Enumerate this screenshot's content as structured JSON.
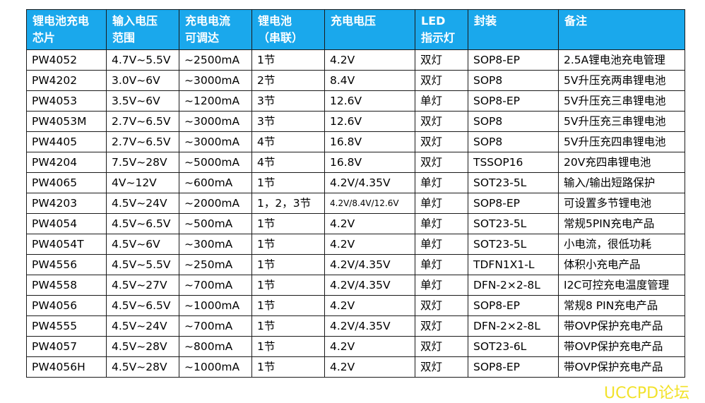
{
  "table": {
    "headers": [
      "锂电池充电\n芯片",
      "输入电压\n范围",
      "充电电流\n可调达",
      "锂电池\n（串联）",
      "充电电压",
      "LED\n指示灯",
      "封装",
      "备注"
    ],
    "rows": [
      [
        "PW4052",
        "4.7V~5.5V",
        "~2500mA",
        "1节",
        "4.2V",
        "双灯",
        "SOP8-EP",
        "2.5A锂电池充电管理"
      ],
      [
        "PW4202",
        "3.0V~6V",
        "~3000mA",
        "2节",
        "8.4V",
        "双灯",
        "SOP8",
        "5V升压充两串锂电池"
      ],
      [
        "PW4053",
        "3.5V~6V",
        "~1200mA",
        "3节",
        "12.6V",
        "单灯",
        "SOP8-EP",
        "5V升压充三串锂电池"
      ],
      [
        "PW4053M",
        "2.7V~6.5V",
        "~3000mA",
        "3节",
        "12.6V",
        "双灯",
        "SOP8",
        "5V升压充三串锂电池"
      ],
      [
        "PW4405",
        "2.7V~6.5V",
        "~3000mA",
        "4节",
        "16.8V",
        "双灯",
        "SOP8",
        "5V升压充四串锂电池"
      ],
      [
        "PW4204",
        "7.5V~28V",
        "~5000mA",
        "4节",
        "16.8V",
        "双灯",
        "TSSOP16",
        "20V充四串锂电池"
      ],
      [
        "PW4065",
        "4V~12V",
        "~600mA",
        "1节",
        "4.2V/4.35V",
        "单灯",
        "SOT23-5L",
        "输入/输出短路保护"
      ],
      [
        "PW4203",
        "4.5V~24V",
        "~2000mA",
        "1，2，3节",
        "4.2V/8.4V/12.6V",
        "单灯",
        "SOP8-EP",
        "可设置多节锂电池"
      ],
      [
        "PW4054",
        "4.5V~6.5V",
        "~500mA",
        "1节",
        "4.2V",
        "单灯",
        "SOT23-5L",
        "常规5PIN充电产品"
      ],
      [
        "PW4054T",
        "4.5V~6V",
        "~300mA",
        "1节",
        "4.2V",
        "单灯",
        "SOT23-5L",
        "小电流，很低功耗"
      ],
      [
        "PW4556",
        "4.5V~5.5V",
        "~250mA",
        "1节",
        "4.2V/4.35V",
        "单灯",
        "TDFN1X1-L",
        "体积小充电产品"
      ],
      [
        "PW4558",
        "4.5V~27V",
        "~700mA",
        "1节",
        "4.2V/4.35V",
        "单灯",
        "DFN-2×2-8L",
        "I2C可控充电温度管理"
      ],
      [
        "PW4056",
        "4.5V~6.5V",
        "~1000mA",
        "1节",
        "4.2V",
        "双灯",
        "SOP8-EP",
        "常规8 PIN充电产品"
      ],
      [
        "PW4555",
        "4.5V~24V",
        "~700mA",
        "1节",
        "4.2V/4.35V",
        "双灯",
        "DFN-2×2-8L",
        "带OVP保护充电产品"
      ],
      [
        "PW4057",
        "4.5V~28V",
        "~800mA",
        "1节",
        "4.2V",
        "双灯",
        "SOT23-6L",
        "带OVP保护充电产品"
      ],
      [
        "PW4056H",
        "4.5V~28V",
        "~1000mA",
        "1节",
        "4.2V",
        "双灯",
        "SOP8-EP",
        "带OVP保护充电产品"
      ]
    ]
  },
  "watermark": "UCCPD论坛",
  "colors": {
    "header_bg": "#1aa8ec",
    "header_text": "#ffffff",
    "border": "#1a1a1a",
    "watermark": "#f2e22a"
  }
}
